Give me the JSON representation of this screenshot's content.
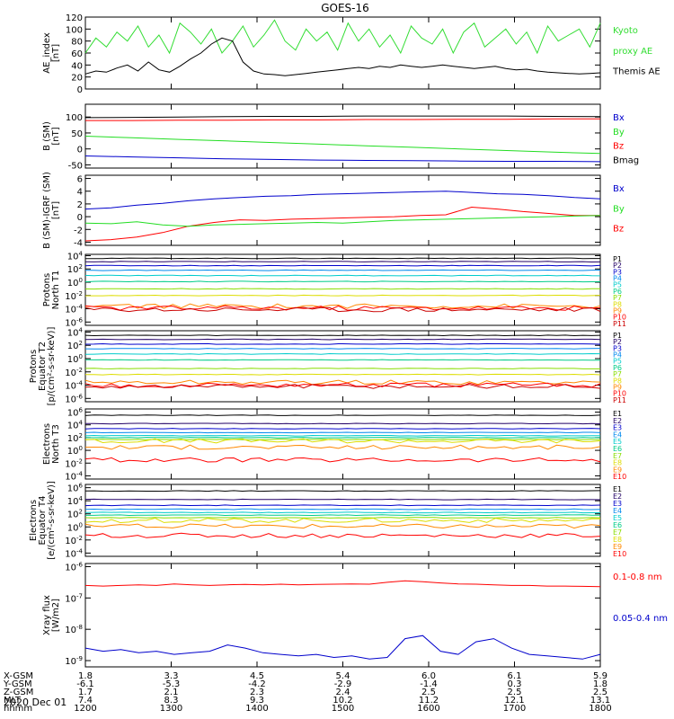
{
  "title": "GOES-16",
  "footer_date": "2020 Dec 01",
  "ephemeris": {
    "labels": [
      "X-GSM",
      "Y-GSM",
      "Z-GSM",
      "MLT",
      "hhmm"
    ],
    "rows": [
      [
        "1.8",
        "3.3",
        "4.5",
        "5.4",
        "6.0",
        "6.1",
        "5.9"
      ],
      [
        "-6.1",
        "-5.3",
        "-4.2",
        "-2.9",
        "-1.4",
        "0.3",
        "1.8"
      ],
      [
        "1.7",
        "2.1",
        "2.3",
        "2.4",
        "2.5",
        "2.5",
        "2.5"
      ],
      [
        "7.4",
        "8.3",
        "9.3",
        "10.2",
        "11.2",
        "12.1",
        "13.1"
      ],
      [
        "1200",
        "1300",
        "1400",
        "1500",
        "1600",
        "1700",
        "1800"
      ]
    ]
  },
  "colors": {
    "black": "#000000",
    "red": "#ff0000",
    "green": "#22dd22",
    "blue": "#0000cc",
    "ae_green": "#33dd33",
    "p": [
      "#000000",
      "#220066",
      "#0000cc",
      "#0088ee",
      "#00cccc",
      "#00cc88",
      "#88dd00",
      "#dddd00",
      "#ff8800",
      "#ff0000",
      "#cc0000"
    ]
  },
  "chart_data": [
    {
      "type": "line",
      "id": "ae",
      "ylabel": [
        "AE_index",
        "[nT]"
      ],
      "ylim": [
        0,
        120
      ],
      "ticks": [
        "0",
        "20",
        "40",
        "60",
        "80",
        "100",
        "120"
      ],
      "legend": [
        {
          "name": "Kyoto",
          "color": "#33dd33"
        },
        {
          "name": "proxy AE",
          "color": "#33dd33"
        },
        {
          "name": "Themis AE",
          "color": "#000000"
        }
      ],
      "series": [
        {
          "name": "Kyoto proxy AE",
          "values": [
            60,
            85,
            70,
            95,
            80,
            105,
            70,
            90,
            60,
            110,
            95,
            75,
            100,
            60,
            80,
            105,
            70,
            90,
            115,
            80,
            65,
            100,
            80,
            95,
            65,
            110,
            80,
            100,
            70,
            90,
            60,
            105,
            85,
            75,
            100,
            60,
            95,
            110,
            70,
            85,
            100,
            75,
            95,
            60,
            105,
            80,
            90,
            100,
            70,
            110
          ]
        },
        {
          "name": "Themis AE",
          "values": [
            25,
            30,
            28,
            35,
            40,
            30,
            45,
            32,
            28,
            38,
            50,
            60,
            75,
            85,
            80,
            45,
            30,
            25,
            24,
            22,
            24,
            26,
            28,
            30,
            32,
            34,
            36,
            34,
            38,
            36,
            40,
            38,
            36,
            38,
            40,
            38,
            36,
            34,
            36,
            38,
            34,
            32,
            33,
            30,
            28,
            27,
            26,
            25,
            26,
            27
          ]
        }
      ]
    },
    {
      "type": "line",
      "id": "bsm",
      "ylabel": [
        "B (SM)",
        "[nT]"
      ],
      "ylim": [
        -60,
        140
      ],
      "ticks": [
        "-50",
        "0",
        "50",
        "100"
      ],
      "legend": [
        {
          "name": "Bx",
          "color": "#0000cc"
        },
        {
          "name": "By",
          "color": "#22dd22"
        },
        {
          "name": "Bz",
          "color": "#ff0000"
        },
        {
          "name": "Bmag",
          "color": "#000000"
        }
      ],
      "series": [
        {
          "name": "Bmag",
          "values": [
            98,
            99,
            100,
            101,
            102,
            102,
            103,
            103,
            103,
            103,
            102,
            101
          ]
        },
        {
          "name": "Bz",
          "values": [
            89,
            89,
            90,
            90,
            91,
            91,
            92,
            92,
            93,
            93,
            94,
            94
          ]
        },
        {
          "name": "By",
          "values": [
            40,
            35,
            30,
            25,
            20,
            15,
            10,
            5,
            0,
            -5,
            -10,
            -14
          ]
        },
        {
          "name": "Bx",
          "values": [
            -22,
            -25,
            -28,
            -31,
            -33,
            -35,
            -36,
            -37,
            -38,
            -39,
            -39,
            -40
          ]
        }
      ]
    },
    {
      "type": "line",
      "id": "bigrf",
      "ylabel": [
        "B (SM)-IGRF (SM)",
        "[nT]"
      ],
      "ylim": [
        -4.5,
        6.5
      ],
      "ticks": [
        "-4",
        "-2",
        "0",
        "2",
        "4",
        "6"
      ],
      "legend": [
        {
          "name": "Bx",
          "color": "#0000cc"
        },
        {
          "name": "By",
          "color": "#22dd22"
        },
        {
          "name": "Bz",
          "color": "#ff0000"
        }
      ],
      "series": [
        {
          "name": "Bx",
          "values": [
            1.2,
            1.4,
            1.8,
            2.1,
            2.5,
            2.8,
            3.0,
            3.2,
            3.3,
            3.5,
            3.6,
            3.7,
            3.8,
            3.9,
            4.0,
            3.8,
            3.6,
            3.5,
            3.3,
            3.0,
            2.8
          ]
        },
        {
          "name": "Bz",
          "values": [
            -3.8,
            -3.6,
            -3.2,
            -2.5,
            -1.5,
            -0.9,
            -0.5,
            -0.6,
            -0.4,
            -0.3,
            -0.2,
            -0.1,
            0.0,
            0.2,
            0.3,
            1.5,
            1.2,
            0.8,
            0.5,
            0.2,
            0.2
          ]
        },
        {
          "name": "By",
          "values": [
            -1.0,
            -1.1,
            -0.8,
            -1.3,
            -1.5,
            -1.3,
            -1.2,
            -1.1,
            -1.0,
            -0.9,
            -1.0,
            -0.8,
            -0.6,
            -0.5,
            -0.4,
            -0.3,
            -0.2,
            -0.1,
            0.0,
            0.1,
            0.2
          ]
        }
      ]
    },
    {
      "type": "line",
      "id": "p1",
      "ylabel": [
        "Protons",
        "North T1"
      ],
      "log": true,
      "ylim": [
        -6.5,
        4.2
      ],
      "ticks": [
        "10^-6",
        "10^-4",
        "10^-2",
        "10^0",
        "10^2",
        "10^4"
      ],
      "legend": [
        "P1",
        "P2",
        "P3",
        "P4",
        "P5",
        "P6",
        "P7",
        "P8",
        "P9",
        "P10",
        "P11"
      ],
      "levels": [
        3.6,
        3.1,
        2.5,
        1.8,
        1.0,
        0.1,
        -1.0,
        -2.0,
        -3.6,
        -3.9,
        -4.1
      ]
    },
    {
      "type": "line",
      "id": "p2",
      "ylabel": [
        "Protons",
        "Equator T2",
        "[p/(cm²-s-sr-keV)]"
      ],
      "log": true,
      "ylim": [
        -6.5,
        4.2
      ],
      "ticks": [
        "10^-6",
        "10^-4",
        "10^-2",
        "10^0",
        "10^2",
        "10^4"
      ],
      "legend": [
        "P1",
        "P2",
        "P3",
        "P4",
        "P5",
        "P6",
        "P7",
        "P8",
        "P9",
        "P10",
        "P11"
      ],
      "levels": [
        3.5,
        2.9,
        2.2,
        1.5,
        0.7,
        -0.2,
        -1.5,
        -2.4,
        -3.6,
        -4.0,
        -4.2
      ]
    },
    {
      "type": "line",
      "id": "e1",
      "ylabel": [
        "Electrons",
        "North T3"
      ],
      "log": true,
      "ylim": [
        -4.5,
        6.5
      ],
      "ticks": [
        "10^-4",
        "10^-2",
        "10^0",
        "10^2",
        "10^4",
        "10^6"
      ],
      "legend": [
        "E1",
        "E2",
        "E3",
        "E4",
        "E5",
        "E6",
        "E7",
        "E8",
        "E9",
        "E10"
      ],
      "levels": [
        5.5,
        4.2,
        3.4,
        2.8,
        2.3,
        2.0,
        1.7,
        1.5,
        0.5,
        -1.5
      ]
    },
    {
      "type": "line",
      "id": "e2",
      "ylabel": [
        "Electrons",
        "Equator T4",
        "[e/(cm²-s-sr-keV)]"
      ],
      "log": true,
      "ylim": [
        -4.5,
        6.5
      ],
      "ticks": [
        "10^-4",
        "10^-2",
        "10^0",
        "10^2",
        "10^4",
        "10^6"
      ],
      "legend": [
        "E1",
        "E2",
        "E3",
        "E4",
        "E5",
        "E6",
        "E7",
        "E8",
        "E9",
        "E10"
      ],
      "levels": [
        5.5,
        4.2,
        3.3,
        2.7,
        2.2,
        1.8,
        1.4,
        1.0,
        0.1,
        -1.3
      ]
    },
    {
      "type": "line",
      "id": "xray",
      "ylabel": [
        "Xray flux",
        "[W/m2]"
      ],
      "log": true,
      "ylim": [
        -9.2,
        -5.9
      ],
      "ticks": [
        "10^-9",
        "10^-8",
        "10^-7",
        "10^-6"
      ],
      "legend": [
        {
          "name": "0.1-0.8 nm",
          "color": "#ff0000"
        },
        {
          "name": "0.05-0.4 nm",
          "color": "#0000cc"
        }
      ],
      "series": [
        {
          "name": "0.1-0.8 nm",
          "values": [
            -6.6,
            -6.62,
            -6.6,
            -6.58,
            -6.6,
            -6.55,
            -6.58,
            -6.6,
            -6.58,
            -6.57,
            -6.58,
            -6.56,
            -6.58,
            -6.57,
            -6.56,
            -6.55,
            -6.56,
            -6.5,
            -6.45,
            -6.48,
            -6.52,
            -6.55,
            -6.56,
            -6.58,
            -6.6,
            -6.6,
            -6.62,
            -6.62,
            -6.63,
            -6.64
          ]
        },
        {
          "name": "0.05-0.4 nm",
          "values": [
            -8.6,
            -8.7,
            -8.65,
            -8.75,
            -8.7,
            -8.8,
            -8.75,
            -8.7,
            -8.5,
            -8.6,
            -8.75,
            -8.8,
            -8.85,
            -8.8,
            -8.9,
            -8.85,
            -8.95,
            -8.9,
            -8.3,
            -8.2,
            -8.7,
            -8.8,
            -8.4,
            -8.3,
            -8.6,
            -8.8,
            -8.85,
            -8.9,
            -8.95,
            -8.8
          ]
        }
      ]
    }
  ]
}
